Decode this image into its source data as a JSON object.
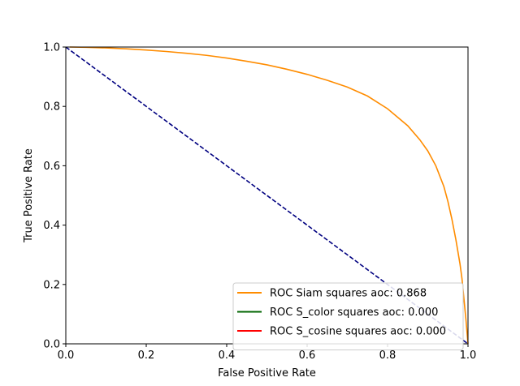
{
  "chart_data": {
    "type": "line",
    "title": "",
    "xlabel": "False Positive Rate",
    "ylabel": "True Positive Rate",
    "xlim": [
      0.0,
      1.0
    ],
    "ylim": [
      0.0,
      1.0
    ],
    "xticks": [
      "0.0",
      "0.2",
      "0.4",
      "0.6",
      "0.8",
      "1.0"
    ],
    "yticks": [
      "0.0",
      "0.2",
      "0.4",
      "0.6",
      "0.8",
      "1.0"
    ],
    "grid": false,
    "legend_position": "lower-right",
    "series": [
      {
        "name": "ROC Siam squares aoc: 0.868",
        "color": "#ff8c00",
        "x": [
          0.01,
          0.05,
          0.1,
          0.15,
          0.2,
          0.25,
          0.3,
          0.35,
          0.4,
          0.45,
          0.5,
          0.55,
          0.6,
          0.65,
          0.7,
          0.75,
          0.8,
          0.85,
          0.88,
          0.9,
          0.92,
          0.94,
          0.95,
          0.96,
          0.97,
          0.98,
          0.985,
          0.99,
          0.995,
          1.0
        ],
        "y": [
          1.0,
          0.999,
          0.997,
          0.994,
          0.99,
          0.985,
          0.979,
          0.972,
          0.963,
          0.952,
          0.94,
          0.925,
          0.908,
          0.888,
          0.865,
          0.835,
          0.792,
          0.735,
          0.688,
          0.65,
          0.6,
          0.53,
          0.48,
          0.42,
          0.35,
          0.27,
          0.22,
          0.15,
          0.08,
          0.0
        ]
      },
      {
        "name": "ROC S_color squares aoc: 0.000",
        "color": "#006400",
        "x": [],
        "y": []
      },
      {
        "name": "ROC S_cosine squares aoc: 0.000",
        "color": "#ff0000",
        "x": [],
        "y": []
      },
      {
        "name": "",
        "color": "#000080",
        "style": "dashed",
        "x": [
          0.0,
          1.0
        ],
        "y": [
          1.0,
          0.0
        ]
      }
    ]
  }
}
